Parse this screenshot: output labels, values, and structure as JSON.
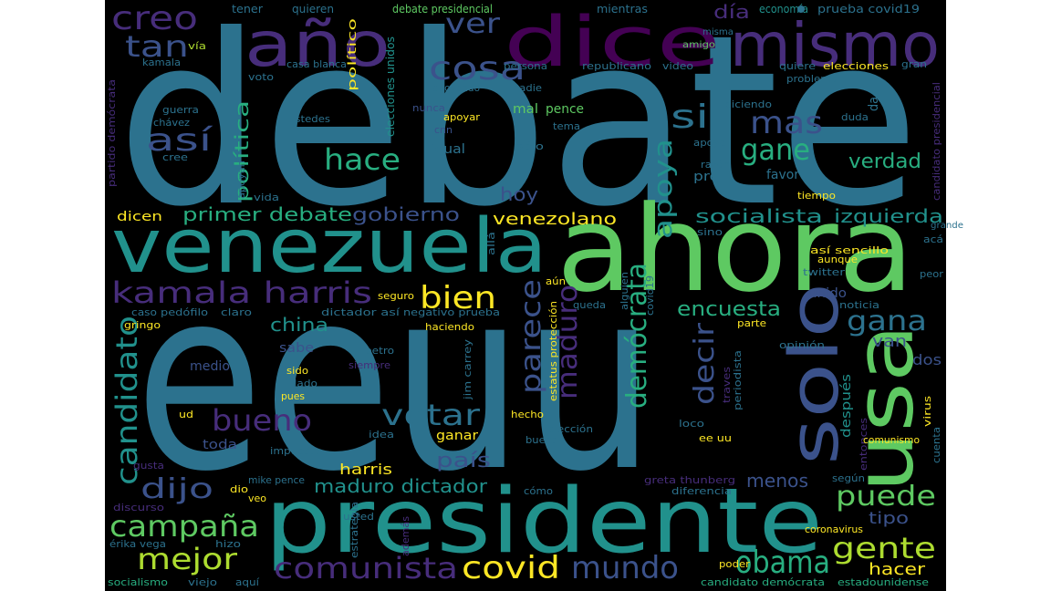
{
  "image": {
    "background": "#000000",
    "canvas_color": "#ffffff",
    "palette": [
      "#440154",
      "#472d7b",
      "#3b528b",
      "#2c728e",
      "#21918c",
      "#28ae80",
      "#5ec962",
      "#addc30",
      "#fde725"
    ]
  },
  "cloud": {
    "debate": "debate",
    "eeuu": "eeuu",
    "ahora": "ahora",
    "presidente": "presidente",
    "venezuela": "venezuela",
    "usa": "usa",
    "solo": "solo",
    "dice": "dice",
    "mismo": "mismo",
    "ano": "año",
    "creo": "creo",
    "tan": "tan",
    "ver": "ver",
    "cosa": "cosa",
    "asi": "así",
    "si": "si",
    "mas": "mas",
    "hace": "hace",
    "gane": "gane",
    "verdad": "verdad",
    "dia": "día",
    "kamala_harris": "kamala harris",
    "bien": "bien",
    "parece": "parece",
    "maduro": "maduro",
    "democrata": "demócrata",
    "apoya": "apoya",
    "candidato": "candidato",
    "bueno": "bueno",
    "votar": "votar",
    "china": "china",
    "gana": "gana",
    "encuesta": "encuesta",
    "decir": "decir",
    "puede": "puede",
    "gente": "gente",
    "obama": "obama",
    "mundo": "mundo",
    "covid": "covid",
    "comunista": "comunista",
    "campana": "campaña",
    "mejor": "mejor",
    "dijo": "dijo",
    "primer_debate": "primer debate",
    "gobierno": "gobierno",
    "venezolano": "venezolano",
    "socialista": "socialista",
    "izquierda": "izquierda",
    "hoy": "hoy",
    "politica": "política",
    "maduro_dictador": "maduro dictador",
    "pais": "país",
    "harris": "harris",
    "menos": "menos",
    "tipo": "tipo",
    "hacer": "hacer",
    "van": "van",
    "dos": "dos",
    "unido": "unido",
    "sabe": "sabe",
    "medio": "medio",
    "toda": "toda",
    "dicen": "dicen",
    "prueba_covid19": "prueba covid19",
    "economia": "economía",
    "elecciones": "elecciones",
    "quiere": "quiere",
    "problema": "problema",
    "diciendo": "diciendo",
    "favor": "favor",
    "pro": "pro",
    "tiempo": "tiempo",
    "asi_sencillo": "así sencillo",
    "aunque": "aunque",
    "twitter": "twitter",
    "noticia": "noticia",
    "opinion": "opinión",
    "despues": "después",
    "comunismo": "comunismo",
    "ee_uu": "ee uu",
    "loco": "loco",
    "greta_thunberg": "greta thunberg",
    "segun": "según",
    "diferencia": "diferencia",
    "como": "cómo",
    "coronavirus": "coronavirus",
    "poder": "poder",
    "candidato_democrata": "candidato demócrata",
    "estadounidense": "estadounidense",
    "socialismo": "socialismo",
    "viejo": "viejo",
    "aqui": "aquí",
    "hizo": "hizo",
    "usted": "usted",
    "veo": "veo",
    "dio": "dio",
    "mike_pence": "mike pence",
    "erika_vega": "érika vega",
    "discurso": "discurso",
    "gusta": "gusta",
    "ud": "ud",
    "caso": "caso",
    "gringo": "gringo",
    "pedofilo": "pedófilo",
    "claro": "claro",
    "dictador_asi": "dictador así",
    "negativo_prueba": "negativo prueba",
    "haciendo": "haciendo",
    "petro": "petro",
    "siempre": "siempre",
    "sido": "sido",
    "lado": "lado",
    "pues": "pues",
    "impuesto": "impuesto",
    "idea": "idea",
    "ganar": "ganar",
    "hecho": "hecho",
    "eleccion": "elección",
    "buena": "buena",
    "seguro": "seguro",
    "queda": "queda",
    "alguien": "alguien",
    "covid19": "covid19",
    "aun": "aún",
    "alla": "allá",
    "sino": "sino",
    "grande": "grande",
    "aca": "acá",
    "peor": "peor",
    "estatus_proteccion": "estatus protección",
    "jim_carrey": "jim carrey",
    "ademas": "además",
    "estrategia": "estrategia",
    "periodista": "periodista",
    "traves": "traves",
    "virus": "virus",
    "cuenta": "cuenta",
    "entonces": "entonces",
    "parte": "parte",
    "tener": "tener",
    "quieren": "quieren",
    "politico": "político",
    "debate_presidencial": "debate presidencial",
    "elecciones_unidos": "elecciones unidos",
    "mientras": "mientras",
    "misma": "misma",
    "amigo": "amigo",
    "via": "vía",
    "kamala": "kamala",
    "voto": "voto",
    "casa_blanca": "casa blanca",
    "apoyando": "apoyando",
    "persona": "persona",
    "republicano": "republicano",
    "video": "video",
    "gran": "gran",
    "nadie": "nadie",
    "nunca": "nunca",
    "cnn": "cnn",
    "guerra": "guerra",
    "chavez": "chávez",
    "ustedes": "ustedes",
    "cree": "cree",
    "apoyar": "apoyar",
    "mal": "mal",
    "pence": "pence",
    "tema": "tema",
    "igual": "igual",
    "solo2": "sólo",
    "duda": "duda",
    "apoyo": "apoyo",
    "razon": "razón",
    "da": "da",
    "vida": "vida",
    "apoyan": "apoyan",
    "partido_democrata": "partido demócrata",
    "candidato_presidencial": "candidato presidencial"
  }
}
